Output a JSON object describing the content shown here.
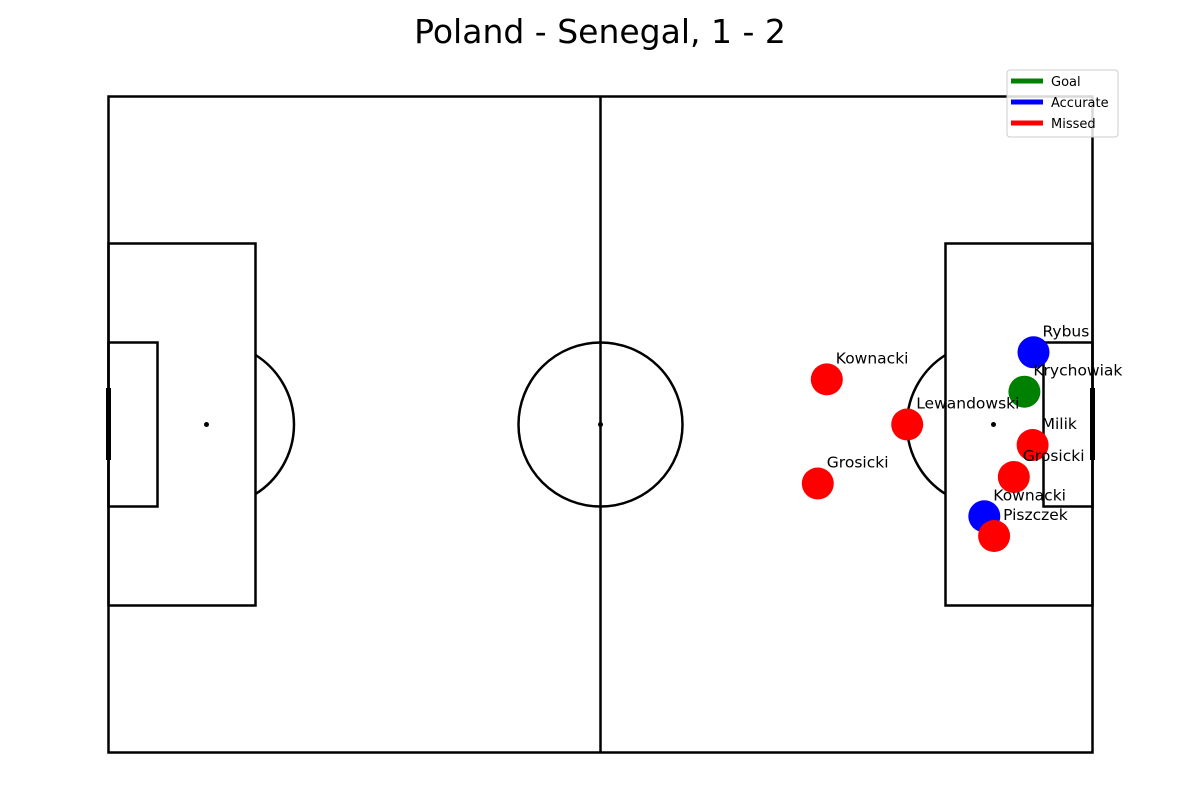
{
  "chart_data": {
    "type": "scatter",
    "title": "Poland - Senegal, 1 - 2",
    "xlim": [
      0,
      120
    ],
    "ylim": [
      0,
      80
    ],
    "grid": false,
    "legend": {
      "placement": "top-right",
      "entries": [
        {
          "label": "Goal",
          "color": "#008000"
        },
        {
          "label": "Accurate",
          "color": "#0000ff"
        },
        {
          "label": "Missed",
          "color": "#ff0000"
        }
      ]
    },
    "shots": [
      {
        "player": "Rybus",
        "x": 112.8,
        "y": 48.8,
        "outcome": "Accurate"
      },
      {
        "player": "Krychowiak",
        "x": 111.7,
        "y": 44.0,
        "outcome": "Goal"
      },
      {
        "player": "Kownacki",
        "x": 87.6,
        "y": 45.5,
        "outcome": "Missed"
      },
      {
        "player": "Lewandowski",
        "x": 97.4,
        "y": 40.0,
        "outcome": "Missed"
      },
      {
        "player": "Milik",
        "x": 112.7,
        "y": 37.5,
        "outcome": "Missed"
      },
      {
        "player": "Grosicki",
        "x": 110.4,
        "y": 33.6,
        "outcome": "Missed"
      },
      {
        "player": "Grosicki",
        "x": 86.5,
        "y": 32.8,
        "outcome": "Missed"
      },
      {
        "player": "Kownacki",
        "x": 106.8,
        "y": 28.8,
        "outcome": "Accurate"
      },
      {
        "player": "Piszczek",
        "x": 108.0,
        "y": 26.4,
        "outcome": "Missed"
      }
    ]
  }
}
